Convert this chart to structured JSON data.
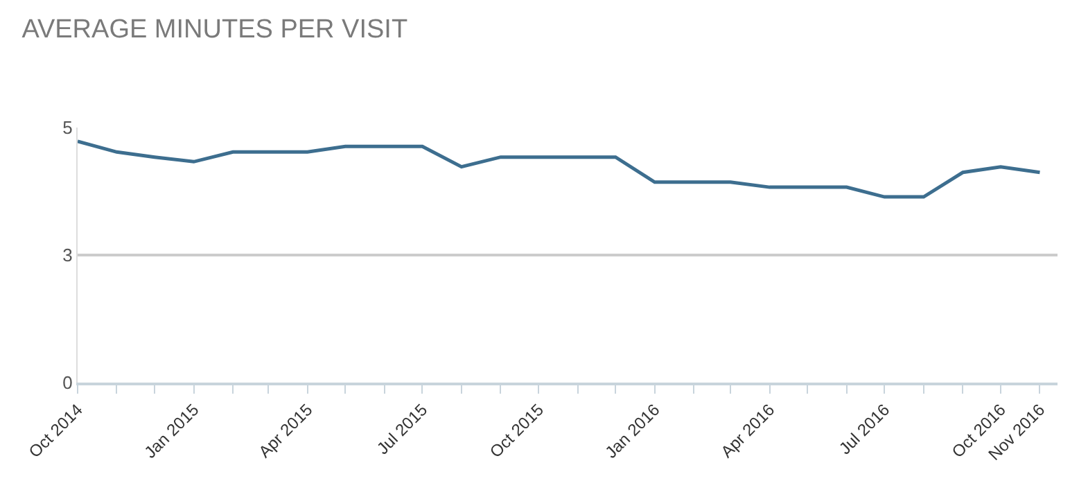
{
  "chart_data": {
    "type": "line",
    "title": "AVERAGE MINUTES PER VISIT",
    "x": [
      "2014-10",
      "2014-11",
      "2014-12",
      "2015-01",
      "2015-02",
      "2015-03",
      "2015-04",
      "2015-05",
      "2015-06",
      "2015-07",
      "2015-08",
      "2015-09",
      "2015-10",
      "2015-11",
      "2015-12",
      "2016-01",
      "2016-02",
      "2016-03",
      "2016-04",
      "2016-05",
      "2016-06",
      "2016-07",
      "2016-08",
      "2016-09",
      "2016-10",
      "2016-11"
    ],
    "series": [
      {
        "color": "#3d6e8f",
        "values": [
          4.73,
          4.52,
          4.42,
          4.33,
          4.52,
          4.52,
          4.52,
          4.63,
          4.63,
          4.63,
          4.23,
          4.42,
          4.42,
          4.42,
          4.42,
          3.93,
          3.93,
          3.93,
          3.83,
          3.83,
          3.83,
          3.64,
          3.64,
          4.12,
          4.23,
          4.12
        ]
      }
    ],
    "ylim": [
      0,
      5
    ],
    "yticks": [
      0,
      {
        "value": 2.5,
        "label": "3"
      },
      5
    ],
    "xlim": [
      "2014-10-01",
      "2016-11-15"
    ],
    "xticks": [
      {
        "value": "2014-10",
        "label": "Oct 2014"
      },
      {
        "value": "2014-11",
        "label": null
      },
      {
        "value": "2014-12",
        "label": null
      },
      {
        "value": "2015-01",
        "label": "Jan 2015"
      },
      {
        "value": "2015-02",
        "label": null
      },
      {
        "value": "2015-03",
        "label": null
      },
      {
        "value": "2015-04",
        "label": "Apr 2015"
      },
      {
        "value": "2015-05",
        "label": null
      },
      {
        "value": "2015-06",
        "label": null
      },
      {
        "value": "2015-07",
        "label": "Jul 2015"
      },
      {
        "value": "2015-08",
        "label": null
      },
      {
        "value": "2015-09",
        "label": null
      },
      {
        "value": "2015-10",
        "label": "Oct 2015"
      },
      {
        "value": "2015-11",
        "label": null
      },
      {
        "value": "2015-12",
        "label": null
      },
      {
        "value": "2016-01",
        "label": "Jan 2016"
      },
      {
        "value": "2016-02",
        "label": null
      },
      {
        "value": "2016-03",
        "label": null
      },
      {
        "value": "2016-04",
        "label": "Apr 2016"
      },
      {
        "value": "2016-05",
        "label": null
      },
      {
        "value": "2016-06",
        "label": null
      },
      {
        "value": "2016-07",
        "label": "Jul 2016"
      },
      {
        "value": "2016-08",
        "label": null
      },
      {
        "value": "2016-09",
        "label": null
      },
      {
        "value": "2016-10",
        "label": "Oct 2016"
      },
      {
        "value": "2016-11",
        "label": "Nov 2016"
      }
    ],
    "grid": "y",
    "marker": "none",
    "line_style": "solid"
  }
}
